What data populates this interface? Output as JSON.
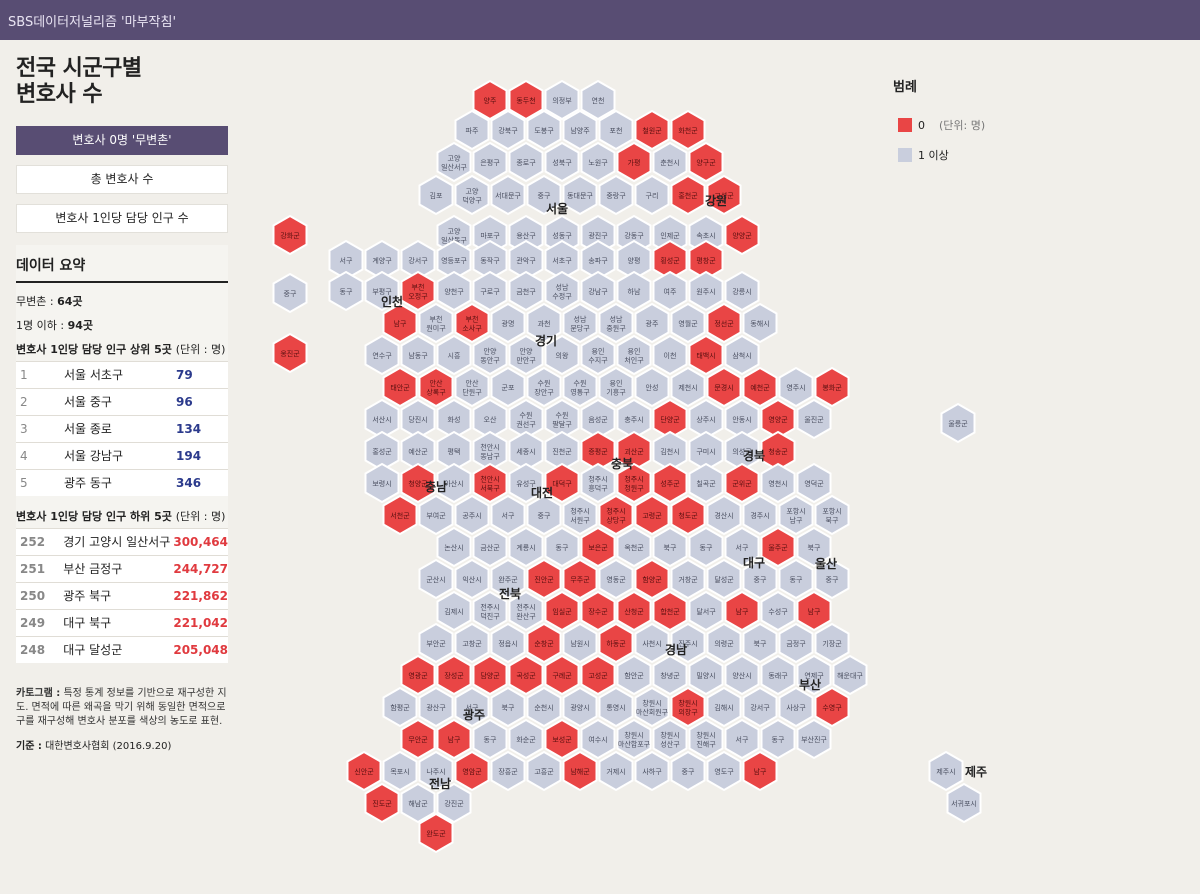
{
  "topbar": {
    "brand": "SBS데이터저널리즘 '마부작침'"
  },
  "title": "전국 시군구별\n변호사 수",
  "buttons": [
    {
      "label": "변호사 0명 '무변촌'",
      "active": true
    },
    {
      "label": "총 변호사 수",
      "active": false
    },
    {
      "label": "변호사 1인당 담당 인구 수",
      "active": false
    }
  ],
  "summary": {
    "title": "데이터 요약",
    "zero_label": "무변촌 :",
    "zero_value": "64곳",
    "le1_label": "1명 이하 :",
    "le1_value": "94곳",
    "top_title": "변호사 1인당 담당 인구 상위 5곳",
    "top_unit": "(단위 : 명)",
    "top_rows": [
      {
        "rank": "1",
        "name": "서울 서초구",
        "value": "79"
      },
      {
        "rank": "2",
        "name": "서울 중구",
        "value": "96"
      },
      {
        "rank": "3",
        "name": "서울 종로",
        "value": "134"
      },
      {
        "rank": "4",
        "name": "서울 강남구",
        "value": "194"
      },
      {
        "rank": "5",
        "name": "광주 동구",
        "value": "346"
      }
    ],
    "bottom_title": "변호사 1인당 담당 인구 하위 5곳",
    "bottom_unit": "(단위 : 명)",
    "bottom_rows": [
      {
        "rank": "252",
        "name": "경기 고양시 일산서구",
        "value": "300,464"
      },
      {
        "rank": "251",
        "name": "부산 금정구",
        "value": "244,727"
      },
      {
        "rank": "250",
        "name": "광주 북구",
        "value": "221,862"
      },
      {
        "rank": "249",
        "name": "대구 북구",
        "value": "221,042"
      },
      {
        "rank": "248",
        "name": "대구 달성군",
        "value": "205,048"
      }
    ],
    "note_label": "카토그램 :",
    "note": "특정 통계 정보를 기반으로 재구성한 지도. 면적에 따른 왜곡을 막기 위해 동일한 면적으로 구를 재구성해 변호사 분포를 색상의 농도로 표현.",
    "source_label": "기준 :",
    "source": "대한변호사협회 (2016.9.20)"
  },
  "legend": {
    "title": "범례",
    "items": [
      {
        "label": "0",
        "color": "#e94545"
      },
      {
        "label": "1 이상",
        "color": "#c9cedd"
      }
    ],
    "unit": "(단위: 명)"
  },
  "colors": {
    "zero": "#e94545",
    "nonzero": "#c9cedd",
    "zero_text": "#5a1010",
    "nonzero_text": "#4a4f60"
  },
  "chart_data": {
    "type": "hex cartogram",
    "regions": [
      "서울",
      "인천",
      "경기",
      "강원",
      "충북",
      "충남",
      "대전",
      "경북",
      "대구",
      "울산",
      "전북",
      "경남",
      "부산",
      "광주",
      "전남",
      "제주"
    ],
    "rows": [
      [
        "양주",
        "동두천",
        "의정부",
        "연천"
      ],
      [
        "파주",
        "강북구",
        "도봉구",
        "남양주",
        "포천",
        "철원군",
        "화천군"
      ],
      [
        "고양 일산서구",
        "은평구",
        "종로구",
        "성북구",
        "노원구",
        "가평",
        "춘천시",
        "양구군"
      ],
      [
        "김포",
        "고양 덕양구",
        "서대문구",
        "중구",
        "동대문구",
        "중랑구",
        "구리",
        "홍천군",
        "고성군"
      ],
      [
        "강화군",
        "고양 일산동구",
        "마포구",
        "용산구",
        "성동구",
        "광진구",
        "강동구",
        "인제군",
        "속초시",
        "양양군"
      ],
      [
        "서구",
        "계양구",
        "강서구",
        "영등포구",
        "동작구",
        "관악구",
        "서초구",
        "송파구",
        "양평",
        "횡성군",
        "평창군"
      ],
      [
        "중구",
        "동구",
        "부평구",
        "부천 오정구",
        "양천구",
        "구로구",
        "금천구",
        "성남 수정구",
        "강남구",
        "하남",
        "여주",
        "원주시",
        "강릉시"
      ],
      [
        "남구",
        "부천 원미구",
        "부천 소사구",
        "광명",
        "과천",
        "성남 분당구",
        "성남 중원구",
        "광주",
        "영월군",
        "정선군",
        "동해시"
      ],
      [
        "옹진군",
        "연수구",
        "남동구",
        "시흥",
        "안양 동안구",
        "안양 만안구",
        "의왕",
        "용인 수지구",
        "용인 처인구",
        "이천",
        "태백시",
        "삼척시"
      ],
      [
        "태안군",
        "안산 상록구",
        "안산 단원구",
        "군포",
        "수원 장안구",
        "수원 영통구",
        "용인 기흥구",
        "안성",
        "제천시",
        "문경시",
        "예천군",
        "영주시",
        "봉화군"
      ],
      [
        "서산시",
        "당진시",
        "화성",
        "오산",
        "수원 권선구",
        "수원 팔달구",
        "음성군",
        "충주시",
        "단양군",
        "상주시",
        "안동시",
        "영양군",
        "울진군"
      ],
      [
        "홍성군",
        "예산군",
        "평택",
        "천안시 동남구",
        "세종시",
        "진천군",
        "증평군",
        "괴산군",
        "김천시",
        "구미시",
        "의성군",
        "청송군",
        "울릉군"
      ],
      [
        "보령시",
        "청양군",
        "아산시",
        "천안시 서북구",
        "유성구",
        "대덕구",
        "청주시 흥덕구",
        "청주시 청원구",
        "성주군",
        "칠곡군",
        "군위군",
        "영천시",
        "영덕군"
      ],
      [
        "서천군",
        "부여군",
        "공주시",
        "서구",
        "중구",
        "청주시 서원구",
        "청주시 상당구",
        "고령군",
        "청도군",
        "경산시",
        "경주시",
        "포항시 남구",
        "포항시 북구"
      ],
      [
        "논산시",
        "금산군",
        "계룡시",
        "동구",
        "보은군",
        "옥천군",
        "북구",
        "동구",
        "서구",
        "울주군",
        "북구"
      ],
      [
        "군산시",
        "익산시",
        "완주군",
        "진안군",
        "무주군",
        "영동군",
        "함양군",
        "거창군",
        "달성군",
        "중구",
        "동구",
        "중구"
      ],
      [
        "김제시",
        "전주시 덕진구",
        "전주시 완산구",
        "임실군",
        "장수군",
        "산청군",
        "합천군",
        "달서구",
        "남구",
        "수성구",
        "남구"
      ],
      [
        "부안군",
        "고창군",
        "정읍시",
        "순창군",
        "남원시",
        "하동군",
        "사천시",
        "진주시",
        "의령군",
        "북구",
        "금정구",
        "기장군"
      ],
      [
        "영광군",
        "장성군",
        "담양군",
        "곡성군",
        "구례군",
        "고성군",
        "함안군",
        "창녕군",
        "밀양시",
        "양산시",
        "동래구",
        "연제구",
        "해운대구"
      ],
      [
        "함평군",
        "광산구",
        "서구",
        "북구",
        "순천시",
        "광양시",
        "통영시",
        "창원시 마산회원구",
        "창원시 의창구",
        "김해시",
        "강서구",
        "사상구",
        "수영구"
      ],
      [
        "무안군",
        "남구",
        "동구",
        "화순군",
        "보성군",
        "여수시",
        "창원시 마산합포구",
        "창원시 성산구",
        "창원시 진해구",
        "서구",
        "동구",
        "부산진구"
      ],
      [
        "신안군",
        "목포시",
        "나주시",
        "영암군",
        "장흥군",
        "고흥군",
        "남해군",
        "거제시",
        "사하구",
        "중구",
        "영도구",
        "남구",
        "제주시"
      ],
      [
        "진도군",
        "해남군",
        "강진군",
        "서귀포시"
      ],
      [
        "완도군"
      ]
    ],
    "zero_lawyer_districts": [
      "양주",
      "동두천",
      "철원군",
      "화천군",
      "가평",
      "양구군",
      "홍천군",
      "고성군(강원)",
      "강화군",
      "양양군",
      "횡성군",
      "평창군",
      "부천 오정구",
      "부천 소사구",
      "정선군",
      "옹진군",
      "태백시",
      "태안군",
      "안산 상록구",
      "문경시",
      "예천군",
      "봉화군",
      "단양군",
      "영양군",
      "증평군",
      "괴산군",
      "청송군",
      "청양군",
      "천안시 서북구",
      "대덕구",
      "청주시 청원구",
      "성주군",
      "군위군",
      "서천군",
      "청주시 상당구",
      "고령군",
      "청도군",
      "보은군",
      "울주군",
      "진안군",
      "무주군",
      "함양군",
      "임실군",
      "장수군",
      "산청군",
      "합천군",
      "남구(대구)",
      "순창군",
      "하동군",
      "영광군",
      "장성군",
      "담양군",
      "곡성군",
      "구례군",
      "고성군(경남)",
      "창원시 의창구",
      "수영구",
      "무안군",
      "보성군",
      "신안군",
      "영암군",
      "남해군",
      "진도군",
      "완도군"
    ],
    "legend": [
      {
        "label": "0"
      },
      {
        "label": "1 이상"
      }
    ],
    "unit": "(단위: 명)"
  }
}
